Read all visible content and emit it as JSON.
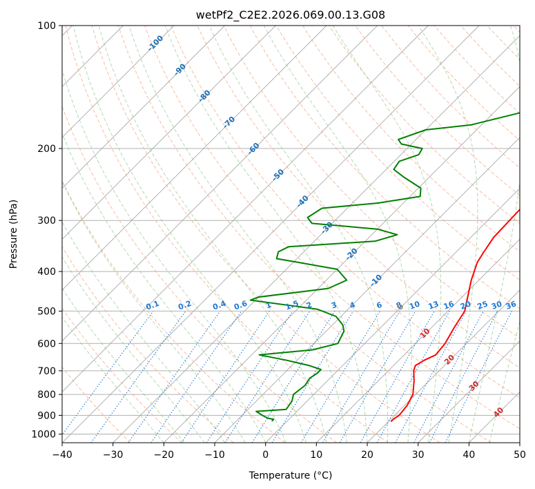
{
  "chart_data": {
    "type": "line",
    "title": "wetPf2_C2E2.2026.069.00.13.G08",
    "xlabel": "Temperature (°C)",
    "ylabel": "Pressure (hPa)",
    "xlim": [
      -40,
      50
    ],
    "ylim": [
      1050,
      100
    ],
    "x_ticks": [
      -40,
      -30,
      -20,
      -10,
      0,
      10,
      20,
      30,
      40,
      50
    ],
    "x_tick_labels": [
      "−40",
      "−30",
      "−20",
      "−10",
      "0",
      "10",
      "20",
      "30",
      "40",
      "50"
    ],
    "y_ticks": [
      100,
      200,
      300,
      400,
      500,
      600,
      700,
      800,
      900,
      1000
    ],
    "y_tick_labels": [
      "100",
      "200",
      "300",
      "400",
      "500",
      "600",
      "700",
      "800",
      "900",
      "1000"
    ],
    "colors": {
      "temperature": "#ff0000",
      "dewpoint": "#008000",
      "dry_adiabat": "#f4a582",
      "moist_adiabat": "#7fbf7b",
      "mixing_ratio": "#1f78d4",
      "isotherm_label_neg": "#1f6fb4",
      "isotherm_label_pos": "#d62728",
      "isotherm_label_zero": "#7f7f7f"
    },
    "series": [
      {
        "name": "Temperature",
        "color": "#ff0000",
        "points": [
          [
            100,
            15.5
          ],
          [
            115,
            9.5
          ],
          [
            130,
            6.5
          ],
          [
            150,
            6.3
          ],
          [
            170,
            6.8
          ],
          [
            185,
            7.2
          ],
          [
            200,
            6.5
          ],
          [
            230,
            5.0
          ],
          [
            260,
            4.0
          ],
          [
            300,
            4.3
          ],
          [
            330,
            4.5
          ],
          [
            360,
            5.5
          ],
          [
            380,
            6.2
          ],
          [
            420,
            8.5
          ],
          [
            460,
            11.0
          ],
          [
            500,
            13.3
          ],
          [
            550,
            14.5
          ],
          [
            600,
            15.8
          ],
          [
            640,
            16.2
          ],
          [
            660,
            15.0
          ],
          [
            680,
            14.3
          ],
          [
            700,
            15.0
          ],
          [
            740,
            17.0
          ],
          [
            800,
            19.5
          ],
          [
            850,
            20.5
          ],
          [
            900,
            20.9
          ],
          [
            920,
            20.5
          ],
          [
            932,
            20.5
          ]
        ]
      },
      {
        "name": "Dewpoint",
        "color": "#008000",
        "points": [
          [
            100,
            -6.0
          ],
          [
            110,
            -5.2
          ],
          [
            122,
            -4.0
          ],
          [
            130,
            -6.0
          ],
          [
            140,
            -8.5
          ],
          [
            160,
            -12.5
          ],
          [
            175,
            -22.0
          ],
          [
            180,
            -30.0
          ],
          [
            190,
            -33.5
          ],
          [
            195,
            -32.0
          ],
          [
            200,
            -27.0
          ],
          [
            207,
            -26.5
          ],
          [
            215,
            -29.0
          ],
          [
            225,
            -28.5
          ],
          [
            235,
            -25.0
          ],
          [
            250,
            -19.5
          ],
          [
            262,
            -18.0
          ],
          [
            272,
            -25.0
          ],
          [
            280,
            -35.0
          ],
          [
            295,
            -36.0
          ],
          [
            305,
            -34.0
          ],
          [
            315,
            -20.0
          ],
          [
            325,
            -15.0
          ],
          [
            337,
            -18.0
          ],
          [
            348,
            -34.0
          ],
          [
            358,
            -35.0
          ],
          [
            372,
            -34.0
          ],
          [
            380,
            -29.0
          ],
          [
            395,
            -20.0
          ],
          [
            420,
            -16.0
          ],
          [
            440,
            -18.0
          ],
          [
            462,
            -30.0
          ],
          [
            470,
            -31.0
          ],
          [
            495,
            -16.0
          ],
          [
            515,
            -11.0
          ],
          [
            540,
            -8.0
          ],
          [
            560,
            -6.5
          ],
          [
            600,
            -5.3
          ],
          [
            622,
            -9.0
          ],
          [
            640,
            -18.5
          ],
          [
            660,
            -12.0
          ],
          [
            680,
            -6.5
          ],
          [
            695,
            -3.5
          ],
          [
            710,
            -3.5
          ],
          [
            730,
            -4.0
          ],
          [
            760,
            -3.5
          ],
          [
            800,
            -4.0
          ],
          [
            830,
            -3.0
          ],
          [
            870,
            -2.5
          ],
          [
            880,
            -8.0
          ],
          [
            900,
            -6.0
          ],
          [
            915,
            -4.3
          ],
          [
            920,
            -3.0
          ],
          [
            930,
            -3.0
          ]
        ]
      }
    ],
    "isotherm_labels": [
      {
        "text": "-100",
        "t": -100
      },
      {
        "text": "-90",
        "t": -90
      },
      {
        "text": "-80",
        "t": -80
      },
      {
        "text": "-70",
        "t": -70
      },
      {
        "text": "-60",
        "t": -60
      },
      {
        "text": "-50",
        "t": -50
      },
      {
        "text": "-40",
        "t": -40
      },
      {
        "text": "-30",
        "t": -30
      },
      {
        "text": "-20",
        "t": -20
      },
      {
        "text": "-10",
        "t": -10
      },
      {
        "text": "0",
        "t": 0
      },
      {
        "text": "10",
        "t": 10
      },
      {
        "text": "20",
        "t": 20
      },
      {
        "text": "30",
        "t": 30
      },
      {
        "text": "40",
        "t": 40
      }
    ],
    "mixing_ratio_labels": [
      "0.1",
      "0.2",
      "0.4",
      "0.6",
      "1",
      "1.5",
      "2",
      "3",
      "4",
      "6",
      "8",
      "10",
      "13",
      "16",
      "20",
      "25",
      "30",
      "36"
    ],
    "mixing_ratio_values": [
      0.1,
      0.2,
      0.4,
      0.6,
      1,
      1.5,
      2,
      3,
      4,
      6,
      8,
      10,
      13,
      16,
      20,
      25,
      30,
      36
    ]
  }
}
